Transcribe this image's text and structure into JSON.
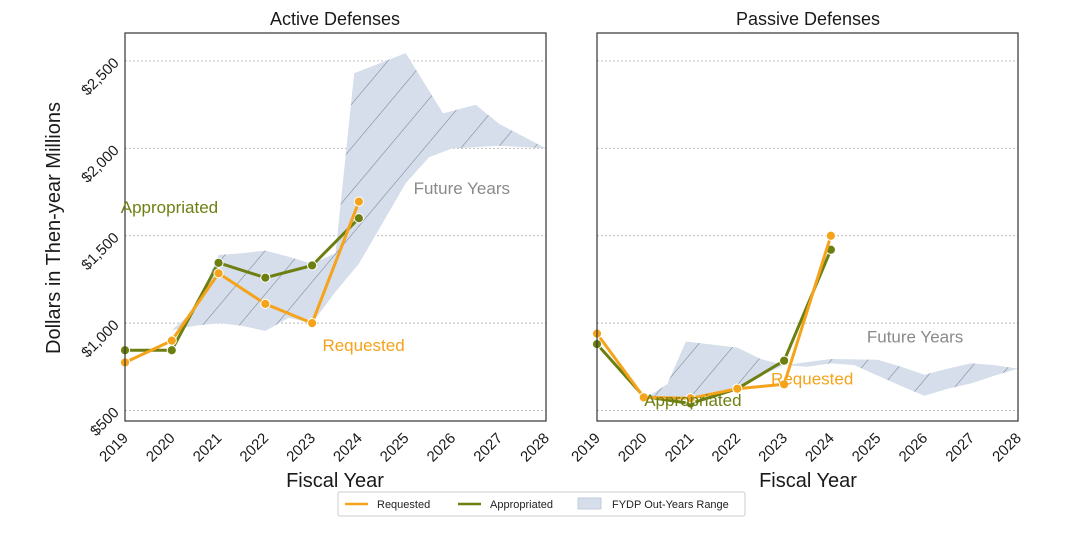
{
  "y_axis_label": "Dollars in Then-year Millions",
  "legend": {
    "requested": "Requested",
    "appropriated": "Appropriated",
    "range": "FYDP Out-Years Range"
  },
  "colors": {
    "requested": "#F5A31A",
    "appropriated": "#6E7F12",
    "range_fill": "#D5DEEA",
    "hatch": "#5A6474",
    "future_text": "#8A8A8A",
    "grid": "#B8B8B8"
  },
  "chart_data": [
    {
      "type": "line",
      "title": "Active Defenses",
      "xlabel": "Fiscal Year",
      "ylabel": "Dollars in Then-year Millions",
      "x": [
        2019,
        2020,
        2021,
        2022,
        2023,
        2024,
        2025,
        2026,
        2027,
        2028
      ],
      "xlim": [
        2019,
        2028
      ],
      "ylim": [
        440,
        2660
      ],
      "yticks": [
        500,
        1000,
        1500,
        2000,
        2500
      ],
      "ytick_labels": [
        "$500",
        "$1,000",
        "$1,500",
        "$2,000",
        "$2,500"
      ],
      "grid": true,
      "series": [
        {
          "name": "Requested",
          "x": [
            2019,
            2020,
            2021,
            2022,
            2023,
            2024
          ],
          "values": [
            775,
            900,
            1285,
            1110,
            1000,
            1695
          ]
        },
        {
          "name": "Appropriated",
          "x": [
            2019,
            2020,
            2021,
            2022,
            2023,
            2024
          ],
          "values": [
            845,
            845,
            1345,
            1260,
            1330,
            1600
          ]
        }
      ],
      "fydp_range": {
        "name": "FYDP Out-Years Range",
        "upper": [
          [
            2020,
            960
          ],
          [
            2020.5,
            1080
          ],
          [
            2021,
            1390
          ],
          [
            2021.5,
            1400
          ],
          [
            2022,
            1415
          ],
          [
            2022.5,
            1380
          ],
          [
            2023,
            1340
          ],
          [
            2023.5,
            1400
          ],
          [
            2023.9,
            2430
          ],
          [
            2025,
            2545
          ],
          [
            2025.8,
            2200
          ],
          [
            2026.5,
            2250
          ],
          [
            2027,
            2140
          ],
          [
            2028,
            2000
          ]
        ],
        "lower": [
          [
            2028,
            2000
          ],
          [
            2027,
            2015
          ],
          [
            2026,
            2000
          ],
          [
            2025.5,
            1950
          ],
          [
            2025,
            1800
          ],
          [
            2024,
            1340
          ],
          [
            2023.5,
            1180
          ],
          [
            2023,
            1000
          ],
          [
            2022.5,
            1030
          ],
          [
            2022,
            955
          ],
          [
            2021.5,
            985
          ],
          [
            2021,
            1000
          ],
          [
            2020.5,
            985
          ],
          [
            2020,
            960
          ]
        ]
      },
      "annotations": [
        {
          "text": "Appropriated",
          "x": 2019.95,
          "y": 1630,
          "series": "appropriated"
        },
        {
          "text": "Requested",
          "x": 2024.1,
          "y": 840,
          "series": "requested"
        },
        {
          "text": "Future Years",
          "x": 2026.2,
          "y": 1740,
          "series": "future"
        }
      ]
    },
    {
      "type": "line",
      "title": "Passive Defenses",
      "xlabel": "Fiscal Year",
      "ylabel": "",
      "x": [
        2019,
        2020,
        2021,
        2022,
        2023,
        2024,
        2025,
        2026,
        2027,
        2028
      ],
      "xlim": [
        2019,
        2028
      ],
      "ylim": [
        440,
        2660
      ],
      "yticks": [
        500,
        1000,
        1500,
        2000,
        2500
      ],
      "ytick_labels": [
        "",
        "",
        "",
        "",
        ""
      ],
      "grid": true,
      "series": [
        {
          "name": "Requested",
          "x": [
            2019,
            2020,
            2021,
            2022,
            2023,
            2024
          ],
          "values": [
            940,
            575,
            570,
            625,
            650,
            1500
          ]
        },
        {
          "name": "Appropriated",
          "x": [
            2019,
            2020,
            2021,
            2022,
            2023,
            2024
          ],
          "values": [
            880,
            580,
            540,
            625,
            785,
            1420
          ]
        }
      ],
      "fydp_range": {
        "name": "FYDP Out-Years Range",
        "upper": [
          [
            2020,
            565
          ],
          [
            2020.5,
            650
          ],
          [
            2020.9,
            895
          ],
          [
            2022,
            860
          ],
          [
            2022.5,
            795
          ],
          [
            2023,
            760
          ],
          [
            2024,
            795
          ],
          [
            2025,
            790
          ],
          [
            2025.5,
            750
          ],
          [
            2026,
            705
          ],
          [
            2026.5,
            740
          ],
          [
            2027,
            770
          ],
          [
            2027.5,
            760
          ],
          [
            2028,
            740
          ]
        ],
        "lower": [
          [
            2028,
            740
          ],
          [
            2027.5,
            700
          ],
          [
            2027,
            655
          ],
          [
            2026.5,
            625
          ],
          [
            2026,
            585
          ],
          [
            2025.5,
            640
          ],
          [
            2025,
            700
          ],
          [
            2024.5,
            760
          ],
          [
            2024,
            770
          ],
          [
            2023.5,
            750
          ],
          [
            2023,
            760
          ],
          [
            2022.5,
            700
          ],
          [
            2022,
            635
          ],
          [
            2021.5,
            590
          ],
          [
            2021,
            575
          ],
          [
            2020.5,
            570
          ],
          [
            2020,
            565
          ]
        ]
      },
      "annotations": [
        {
          "text": "Future Years",
          "x": 2025.8,
          "y": 890,
          "series": "future"
        },
        {
          "text": "Requested",
          "x": 2023.6,
          "y": 650,
          "series": "requested"
        },
        {
          "text": "Appropriated",
          "x": 2021.05,
          "y": 525,
          "series": "appropriated"
        }
      ]
    }
  ]
}
